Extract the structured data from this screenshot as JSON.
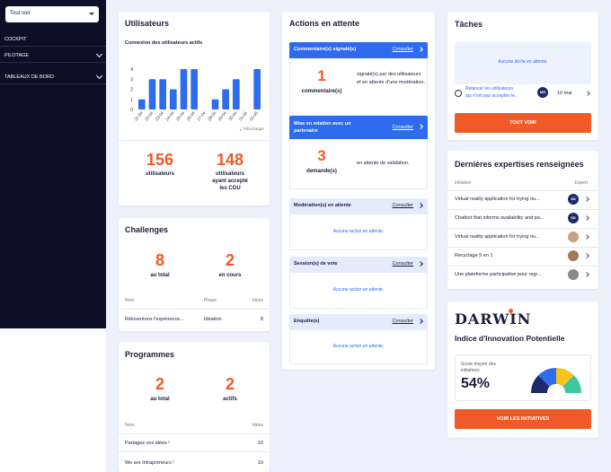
{
  "sidebar": {
    "select_value": "Tout voir",
    "items": [
      {
        "label": "COCKPIT",
        "has_chevron": false
      },
      {
        "label": "PILOTAGE",
        "has_chevron": true
      },
      {
        "label": "TABLEAUX DE BORD",
        "has_chevron": true
      }
    ]
  },
  "users": {
    "title": "Utilisateurs",
    "chart_title": "Connexion des utilisateurs actifs",
    "download": "Télécharger",
    "stat1_value": "156",
    "stat1_label": "utilisateurs",
    "stat2_value": "148",
    "stat2_label_l1": "utilisateurs",
    "stat2_label_l2": "ayant accepté",
    "stat2_label_l3": "les CGU"
  },
  "chart_data": {
    "type": "bar",
    "categories": [
      "21-04",
      "22-04",
      "23-04",
      "24-04",
      "25-04",
      "26-04",
      "27-04",
      "28-04",
      "29-04",
      "30-04",
      "01-05",
      "02-05"
    ],
    "values": [
      1,
      3,
      3,
      2,
      4,
      4,
      0,
      1,
      2,
      3,
      0,
      4
    ],
    "ylim": [
      0,
      4
    ],
    "yticks": [
      0,
      1,
      2,
      3,
      4
    ],
    "color": "#2f6bed",
    "title": "Connexion des utilisateurs actifs",
    "xlabel": "",
    "ylabel": ""
  },
  "challenges": {
    "title": "Challenges",
    "stat1_value": "8",
    "stat1_label": "au total",
    "stat2_value": "2",
    "stat2_label": "en cours",
    "col_nom": "Nom",
    "col_phase": "Phase",
    "col_idees": "Idées",
    "rows": [
      {
        "nom": "Réinventons l'expérience...",
        "phase": "Idéation",
        "idees": "8"
      }
    ]
  },
  "programmes": {
    "title": "Programmes",
    "stat1_value": "2",
    "stat1_label": "au total",
    "stat2_value": "2",
    "stat2_label": "actifs",
    "col_nom": "Nom",
    "col_idees": "Idées",
    "rows": [
      {
        "nom": "Partagez vos idées !",
        "idees": "10"
      },
      {
        "nom": "We are Intrapreneurs !",
        "idees": "10"
      }
    ]
  },
  "actions": {
    "title": "Actions en attente",
    "consult": "Consulter",
    "sections": [
      {
        "head": "Commentaire(s) signalé(s)",
        "count": "1",
        "count_label": "commentaire(s)",
        "desc": "signalé(s) par des utilisateurs et en attente d'une modération."
      },
      {
        "head": "Mise en relation avec un partenaire",
        "count": "3",
        "count_label": "demande(s)",
        "desc": "en attente de validation."
      },
      {
        "head": "Modération(s) en attente",
        "none": "Aucune action en attente."
      },
      {
        "head": "Session(s) de vote",
        "none": "Aucune action en attente."
      },
      {
        "head": "Enquête(s)",
        "none": "Aucune action en attente."
      }
    ]
  },
  "taches": {
    "title": "Tâches",
    "empty": "Aucune tâche en attente.",
    "task_text_l1": "Relancer les utilisateurs",
    "task_text_l2": "qui n'ont pas acceptés le...",
    "task_avatar": "MR",
    "task_date": "10 mai",
    "button": "TOUT VOIR"
  },
  "expertises": {
    "title": "Dernières expertises renseignées",
    "col_initiative": "Initiative",
    "col_expert": "Expert",
    "rows": [
      {
        "initiative": "Virtual reality application for trying ou...",
        "avatar": "SD"
      },
      {
        "initiative": "Chatbot that informs availability and pa...",
        "avatar": "SD"
      },
      {
        "initiative": "Virtual reality application for trying ou...",
        "avatar": ""
      },
      {
        "initiative": "Recyclage 5 en 1",
        "avatar": ""
      },
      {
        "initiative": "Une plateforme participative pour regr...",
        "avatar": ""
      }
    ]
  },
  "darwin": {
    "logo": "DARWIN",
    "title": "Indice d'Innovation Potentielle",
    "score_label_l1": "Score moyen des",
    "score_label_l2": "initiatives",
    "score_value": "54%",
    "button": "VOIR LES INITIATIVES"
  },
  "colors": {
    "primary": "#2f6bed",
    "accent": "#f05a28",
    "sidebar": "#0e0f26",
    "gauge": [
      "#1f2a6b",
      "#2f6bed",
      "#f7c21c",
      "#3ec8a0"
    ]
  }
}
